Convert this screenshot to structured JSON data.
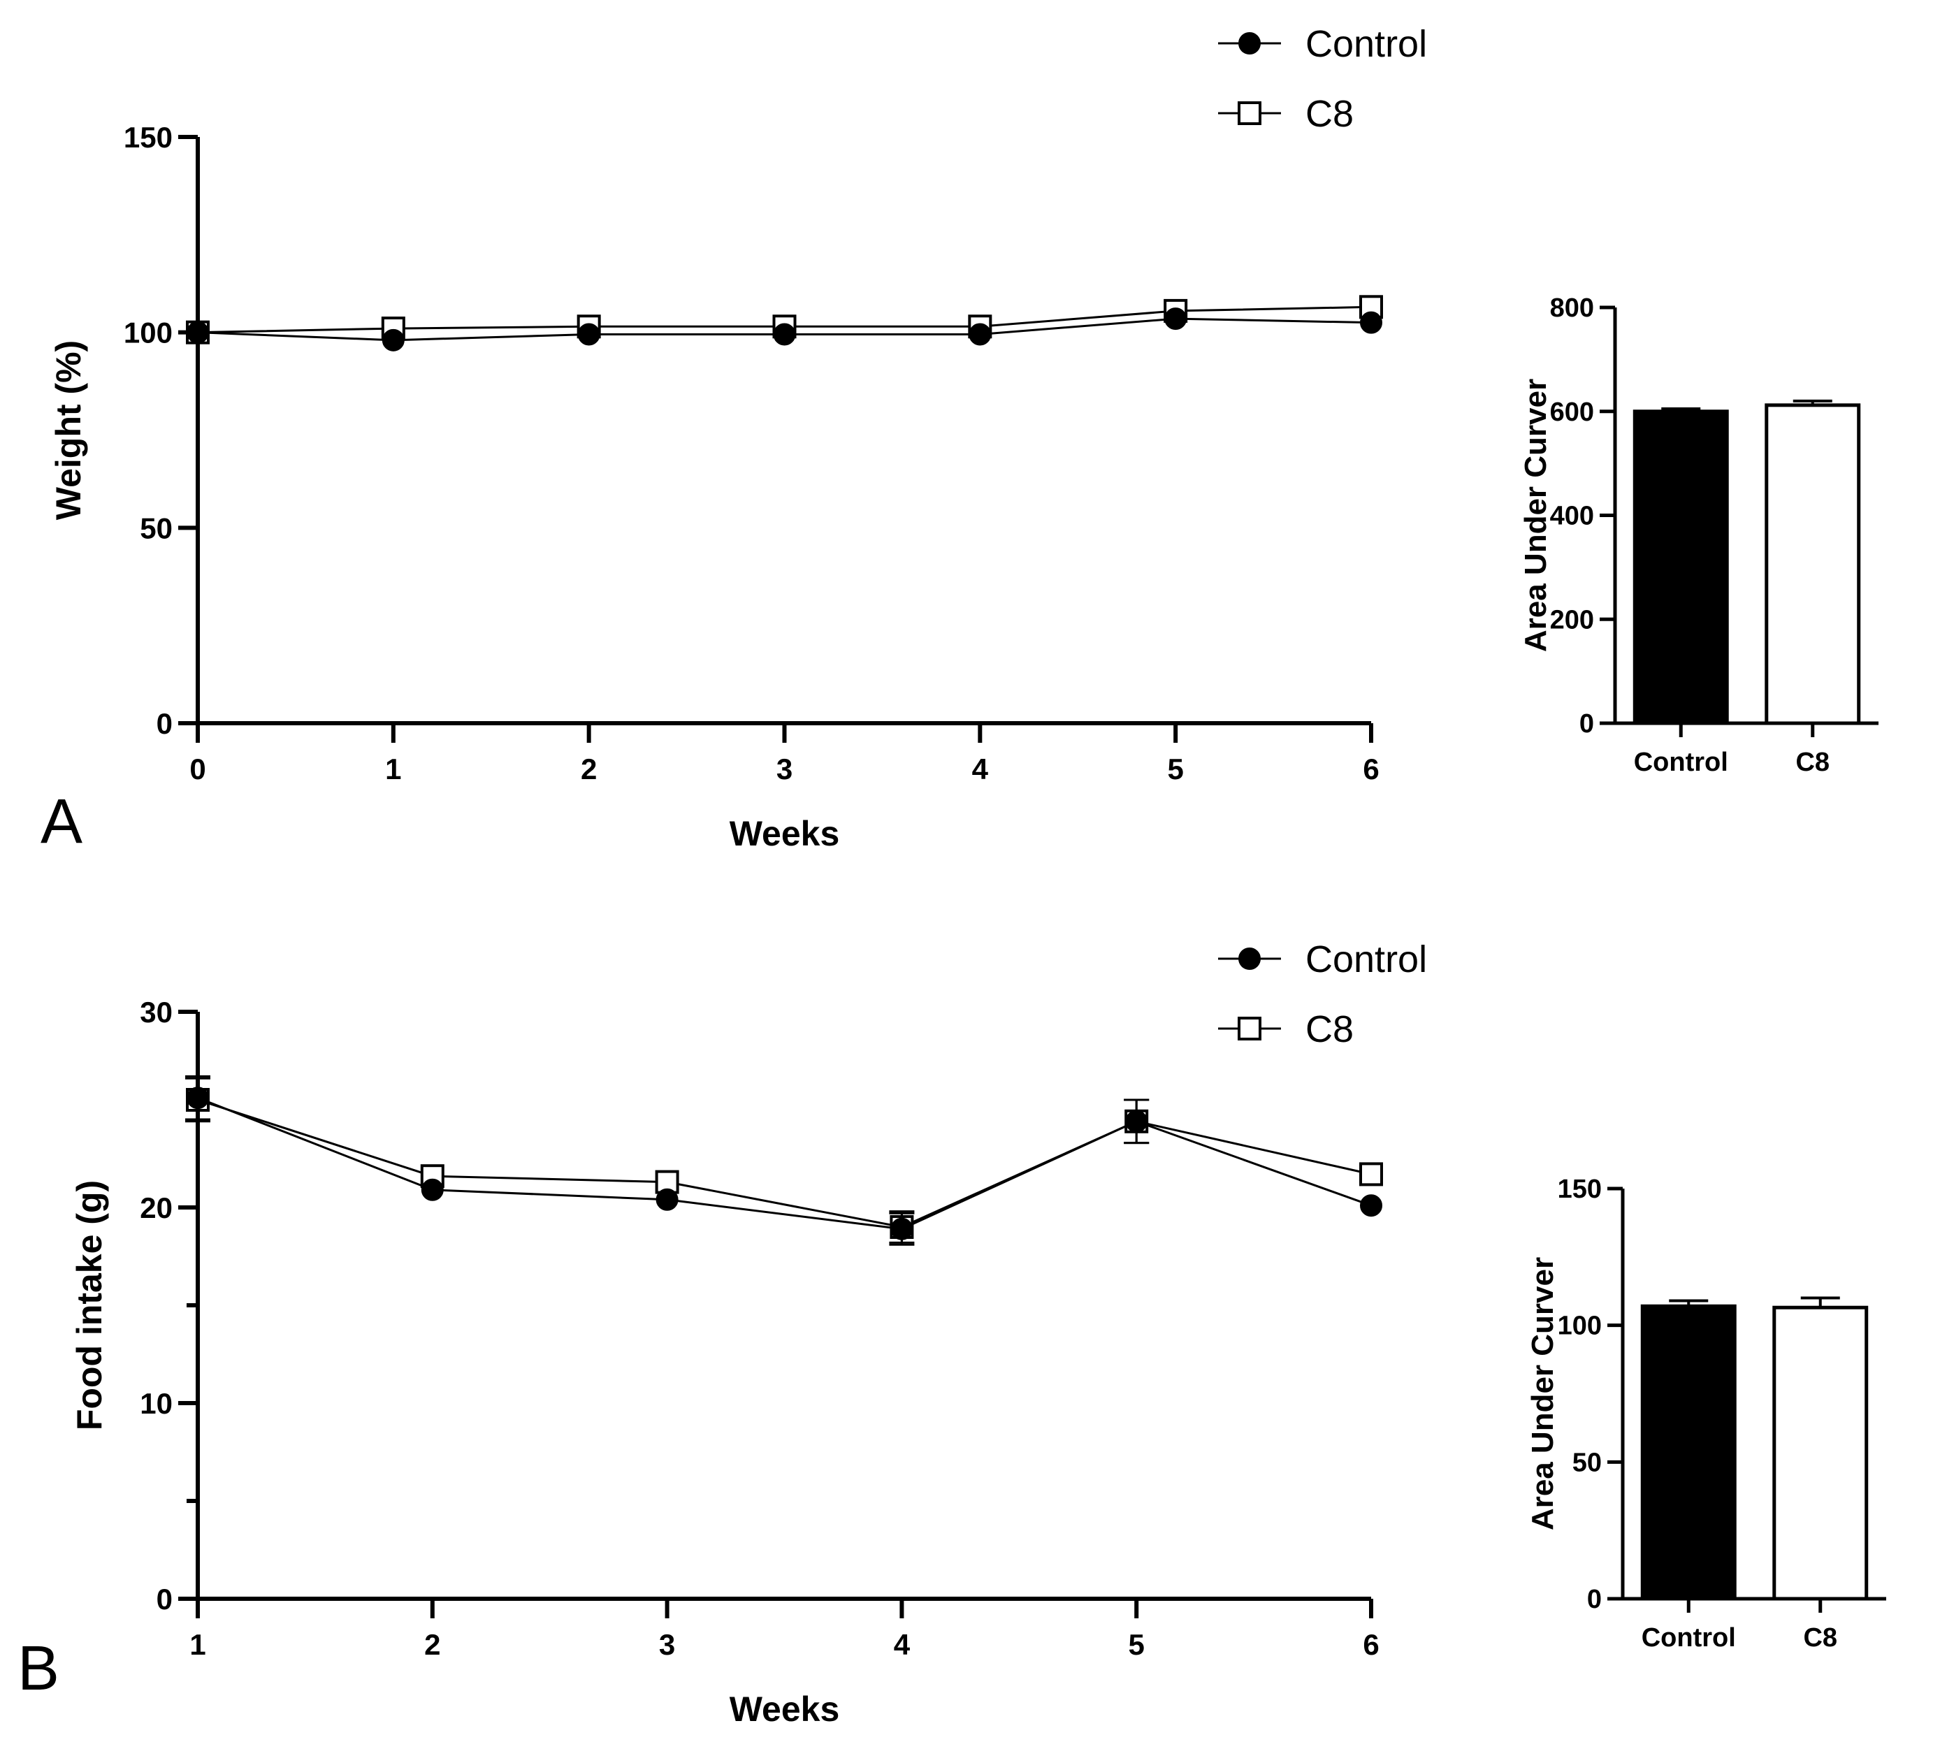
{
  "colors": {
    "axis": "#000000",
    "control_fill": "#000000",
    "c8_fill": "#ffffff",
    "background": "#ffffff"
  },
  "chart_data": [
    {
      "id": "A-line",
      "type": "line",
      "panel_label": "A",
      "xlabel": "Weeks",
      "ylabel": "Weight (%)",
      "x": [
        0,
        1,
        2,
        3,
        4,
        5,
        6
      ],
      "xlim": [
        0,
        6
      ],
      "ylim": [
        0,
        150
      ],
      "yticks": [
        0,
        50,
        100,
        150
      ],
      "legend": "top-right",
      "series": [
        {
          "name": "Control",
          "marker": "filled-circle",
          "values": [
            100,
            98,
            99.5,
            99.5,
            99.5,
            103.5,
            102.5
          ],
          "errors": [
            0,
            0,
            0,
            0,
            0,
            0,
            0
          ]
        },
        {
          "name": "C8",
          "marker": "open-square",
          "values": [
            100,
            101,
            101.5,
            101.5,
            101.5,
            105.5,
            106.5
          ],
          "errors": [
            0,
            0,
            0,
            0,
            0,
            0,
            0
          ]
        }
      ]
    },
    {
      "id": "A-bar",
      "type": "bar",
      "categories": [
        "Control",
        "C8"
      ],
      "values": [
        600,
        612
      ],
      "errors": [
        5,
        8
      ],
      "fills": [
        "filled",
        "open"
      ],
      "ylabel": "Area Under Curver",
      "ylim": [
        0,
        800
      ],
      "yticks": [
        0,
        200,
        400,
        600,
        800
      ]
    },
    {
      "id": "B-line",
      "type": "line",
      "panel_label": "B",
      "xlabel": "Weeks",
      "ylabel": "Food intake (g)",
      "x": [
        1,
        2,
        3,
        4,
        5,
        6
      ],
      "xlim": [
        1,
        6
      ],
      "ylim": [
        0,
        30
      ],
      "yticks": [
        0,
        10,
        20,
        30
      ],
      "minor_yticks": [
        5,
        15,
        25
      ],
      "legend": "top-right",
      "series": [
        {
          "name": "Control",
          "marker": "filled-circle",
          "values": [
            25.6,
            20.9,
            20.4,
            18.9,
            24.4,
            20.1
          ],
          "errors": [
            1.1,
            0,
            0,
            0.8,
            1.1,
            0
          ]
        },
        {
          "name": "C8",
          "marker": "open-square",
          "values": [
            25.5,
            21.6,
            21.3,
            19.0,
            24.4,
            21.7
          ],
          "errors": [
            1.1,
            0,
            0,
            0.8,
            1.1,
            0
          ]
        }
      ]
    },
    {
      "id": "B-bar",
      "type": "bar",
      "categories": [
        "Control",
        "C8"
      ],
      "values": [
        107,
        106.5
      ],
      "errors": [
        2,
        3.5
      ],
      "fills": [
        "filled",
        "open"
      ],
      "ylabel": "Area Under Curver",
      "ylim": [
        0,
        150
      ],
      "yticks": [
        0,
        50,
        100,
        150
      ]
    }
  ]
}
